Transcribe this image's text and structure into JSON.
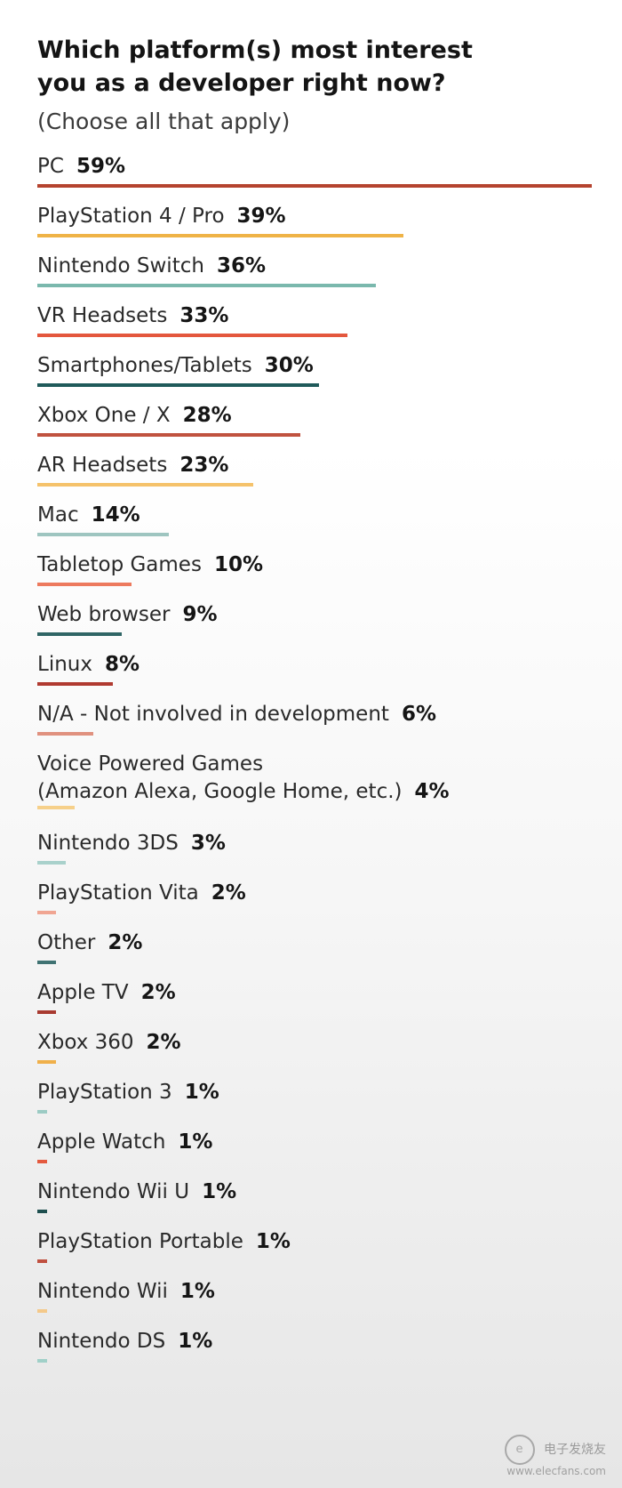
{
  "chart_data": {
    "type": "bar",
    "title_lines": [
      "Which platform(s) most interest",
      "you as a developer right now?"
    ],
    "subtitle": "(Choose all that apply)",
    "categories": [
      "PC",
      "PlayStation 4 / Pro",
      "Nintendo Switch",
      "VR Headsets",
      "Smartphones/Tablets",
      "Xbox One / X",
      "AR Headsets",
      "Mac",
      "Tabletop Games",
      "Web browser",
      "Linux",
      "N/A - Not involved in development",
      "Voice Powered Games (Amazon Alexa, Google Home, etc.)",
      "Nintendo 3DS",
      "PlayStation Vita",
      "Other",
      "Apple TV",
      "Xbox 360",
      "PlayStation 3",
      "Apple Watch",
      "Nintendo Wii U",
      "PlayStation Portable",
      "Nintendo Wii",
      "Nintendo DS"
    ],
    "values": [
      59,
      39,
      36,
      33,
      30,
      28,
      23,
      14,
      10,
      9,
      8,
      6,
      4,
      3,
      2,
      2,
      2,
      2,
      1,
      1,
      1,
      1,
      1,
      1
    ],
    "value_labels": [
      "59%",
      "39%",
      "36%",
      "33%",
      "30%",
      "28%",
      "23%",
      "14%",
      "10%",
      "9%",
      "8%",
      "6%",
      "4%",
      "3%",
      "2%",
      "2%",
      "2%",
      "2%",
      "1%",
      "1%",
      "1%",
      "1%",
      "1%",
      "1%"
    ],
    "colors": [
      "#b5432f",
      "#efb347",
      "#7ab8ad",
      "#e4573d",
      "#1f5a5a",
      "#c0523f",
      "#f5c26b",
      "#9ec5c0",
      "#ed7a5e",
      "#2f6565",
      "#b03a30",
      "#e0917f",
      "#f6d08a",
      "#a9d1cb",
      "#f0a592",
      "#3f7272",
      "#a83a30",
      "#f0b04a",
      "#9ccbc4",
      "#e45a3f",
      "#1e4f4f",
      "#c05040",
      "#f4c98a",
      "#a0d0c8"
    ],
    "unit": "%",
    "orientation": "horizontal",
    "legend": "none",
    "grid": false
  },
  "watermark": {
    "text": "电子发烧友",
    "sub": "www.elecfans.com",
    "logo": "e-logo-icon"
  }
}
